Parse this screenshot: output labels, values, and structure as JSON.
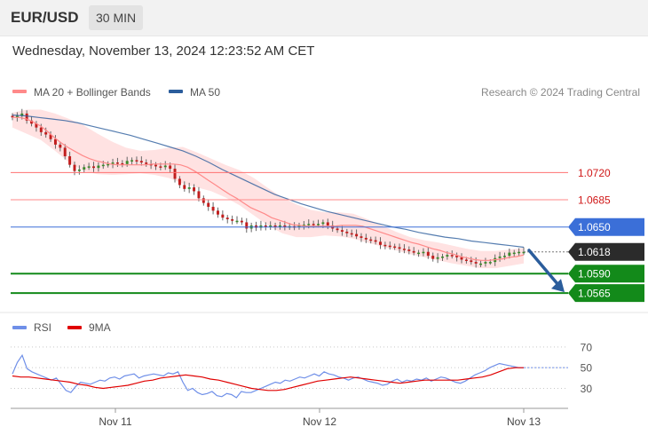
{
  "header": {
    "pair": "EUR/USD",
    "timeframe": "30 MIN",
    "datetime": "Wednesday, November 13, 2024 12:23:52 AM CET"
  },
  "legend": {
    "ma20_label": "MA 20 + Bollinger Bands",
    "ma50_label": "MA 50",
    "credit": "Research © 2024 Trading Central",
    "ma20_color": "#ff8a8a",
    "ma50_color": "#2b5d9c"
  },
  "rsi_legend": {
    "rsi_label": "RSI",
    "ma9_label": "9MA",
    "rsi_color": "#6f8fe8",
    "ma9_color": "#e00000"
  },
  "chart_data": {
    "type": "candlestick",
    "symbol": "EUR/USD",
    "interval": "30 MIN",
    "ylim": [
      1.0548,
      1.0805
    ],
    "x_ticks": [
      "Nov 11",
      "Nov 12",
      "Nov 13"
    ],
    "closes": [
      1.0791,
      1.0793,
      1.0796,
      1.0787,
      1.0783,
      1.0778,
      1.0772,
      1.0769,
      1.0763,
      1.0756,
      1.0752,
      1.0741,
      1.073,
      1.0722,
      1.0724,
      1.0727,
      1.0728,
      1.0726,
      1.0729,
      1.073,
      1.0731,
      1.0733,
      1.0732,
      1.0731,
      1.0735,
      1.0736,
      1.0735,
      1.0733,
      1.0731,
      1.073,
      1.0728,
      1.0727,
      1.0729,
      1.0725,
      1.0712,
      1.0704,
      1.0699,
      1.0701,
      1.0696,
      1.0687,
      1.0681,
      1.0676,
      1.0671,
      1.0666,
      1.0662,
      1.066,
      1.0658,
      1.0658,
      1.0656,
      1.0648,
      1.0652,
      1.0649,
      1.0652,
      1.0651,
      1.0652,
      1.065,
      1.0652,
      1.0651,
      1.0651,
      1.065,
      1.0652,
      1.0653,
      1.0654,
      1.0653,
      1.0654,
      1.0656,
      1.0652,
      1.0648,
      1.0646,
      1.0644,
      1.0642,
      1.0641,
      1.0638,
      1.0636,
      1.0634,
      1.0633,
      1.0631,
      1.0627,
      1.0626,
      1.0625,
      1.0624,
      1.0622,
      1.0621,
      1.0619,
      1.0617,
      1.0617,
      1.0618,
      1.0613,
      1.0609,
      1.0611,
      1.0612,
      1.0614,
      1.0613,
      1.0611,
      1.0608,
      1.0607,
      1.0605,
      1.0603,
      1.0603,
      1.0605,
      1.0605,
      1.061,
      1.0612,
      1.0613,
      1.0617,
      1.0617,
      1.0618,
      1.0618
    ],
    "ma20": [
      1.0791,
      1.0791,
      1.0789,
      1.0785,
      1.078,
      1.0773,
      1.0765,
      1.0758,
      1.0752,
      1.0747,
      1.0742,
      1.0738,
      1.0735,
      1.0733,
      1.0731,
      1.073,
      1.073,
      1.073,
      1.073,
      1.073,
      1.0731,
      1.0731,
      1.0731,
      1.0731,
      1.073,
      1.0727,
      1.0722,
      1.0716,
      1.071,
      1.0704,
      1.0698,
      1.0692,
      1.0687,
      1.0681,
      1.0675,
      1.0671,
      1.0667,
      1.0662,
      1.0659,
      1.0656,
      1.0653,
      1.0652,
      1.0651,
      1.0651,
      1.0651,
      1.0651,
      1.0651,
      1.0652,
      1.0652,
      1.0652,
      1.0651,
      1.0648,
      1.0645,
      1.0642,
      1.0639,
      1.0636,
      1.0633,
      1.063,
      1.0628,
      1.0625,
      1.0622,
      1.062,
      1.0617,
      1.0615,
      1.0612,
      1.061,
      1.0608,
      1.0607,
      1.0607,
      1.0608,
      1.0609,
      1.0611,
      1.0612,
      1.0614
    ],
    "ma50": [
      1.0794,
      1.0793,
      1.0791,
      1.0789,
      1.0787,
      1.0784,
      1.078,
      1.0776,
      1.0772,
      1.0768,
      1.0763,
      1.0758,
      1.0753,
      1.0748,
      1.0741,
      1.0733,
      1.0724,
      1.0716,
      1.0708,
      1.07,
      1.0692,
      1.0686,
      1.068,
      1.0675,
      1.067,
      1.0666,
      1.0662,
      1.0658,
      1.0654,
      1.065,
      1.0647,
      1.0643,
      1.064,
      1.0637,
      1.0635,
      1.0632,
      1.063,
      1.0628,
      1.0626,
      1.0624
    ],
    "bb_upper": [
      1.0797,
      1.0801,
      1.0801,
      1.0796,
      1.0789,
      1.0781,
      1.077,
      1.076,
      1.0752,
      1.0748,
      1.0749,
      1.0752,
      1.0753,
      1.0746,
      1.0738,
      1.073,
      1.0723,
      1.0713,
      1.07,
      1.0688,
      1.0679,
      1.0672,
      1.0669,
      1.0669,
      1.0667,
      1.066,
      1.0652,
      1.0644,
      1.0637,
      1.0633,
      1.063,
      1.0626,
      1.0622,
      1.0619,
      1.0619,
      1.0621,
      1.0623
    ],
    "bb_lower": [
      1.0778,
      1.077,
      1.0762,
      1.0748,
      1.0733,
      1.0722,
      1.0718,
      1.0717,
      1.0718,
      1.0719,
      1.0717,
      1.0713,
      1.0706,
      1.0701,
      1.0696,
      1.0688,
      1.0678,
      1.0665,
      1.0652,
      1.0642,
      1.0637,
      1.0637,
      1.0639,
      1.0638,
      1.0635,
      1.063,
      1.0625,
      1.062,
      1.0615,
      1.0611,
      1.0607,
      1.0603,
      1.06,
      1.0597,
      1.0597,
      1.06,
      1.0603
    ],
    "rsi": [
      44,
      55,
      62,
      49,
      46,
      44,
      42,
      40,
      38,
      40,
      34,
      28,
      26,
      32,
      36,
      35,
      34,
      36,
      38,
      37,
      40,
      41,
      39,
      42,
      43,
      44,
      40,
      42,
      43,
      44,
      43,
      42,
      45,
      44,
      46,
      36,
      28,
      30,
      26,
      24,
      25,
      27,
      23,
      22,
      25,
      24,
      21,
      27,
      26,
      26,
      28,
      30,
      32,
      34,
      36,
      35,
      38,
      37,
      39,
      41,
      40,
      42,
      44,
      42,
      46,
      44,
      43,
      41,
      40,
      38,
      40,
      41,
      39,
      37,
      36,
      35,
      33,
      34,
      37,
      39,
      36,
      38,
      37,
      39,
      38,
      40,
      37,
      39,
      41,
      40,
      38,
      36,
      35,
      37,
      40,
      43,
      45,
      47,
      50,
      52,
      54,
      53,
      52,
      51,
      50,
      50
    ],
    "rsi_ma9": [
      42,
      41,
      41,
      40,
      39,
      38,
      37,
      36,
      34,
      33,
      31,
      30,
      31,
      32,
      33,
      35,
      37,
      38,
      40,
      41,
      42,
      43,
      42,
      41,
      39,
      38,
      36,
      34,
      32,
      30,
      29,
      28,
      28,
      29,
      31,
      33,
      35,
      37,
      38,
      39,
      40,
      41,
      40,
      39,
      38,
      37,
      36,
      35,
      36,
      37,
      38,
      38,
      38,
      38,
      38,
      39,
      40,
      41,
      43,
      46,
      49,
      50,
      50
    ],
    "rsi_levels": [
      70,
      50,
      30
    ],
    "levels": [
      {
        "label": "1.0720",
        "value": 1.072,
        "color": "#ff7070",
        "style": "thin-red"
      },
      {
        "label": "1.0685",
        "value": 1.0685,
        "color": "#ff8a8a",
        "style": "thin-red"
      },
      {
        "label": "1.0650",
        "value": 1.065,
        "color": "#3b6fd8",
        "style": "blue"
      },
      {
        "label": "1.0618",
        "value": 1.0618,
        "color": "#2b2b2b",
        "style": "current"
      },
      {
        "label": "1.0590",
        "value": 1.059,
        "color": "#138a1a",
        "style": "green"
      },
      {
        "label": "1.0565",
        "value": 1.0565,
        "color": "#138a1a",
        "style": "green"
      }
    ],
    "forecast_arrow": {
      "from": 1.062,
      "to": 1.0565,
      "color": "#2b5d9c"
    },
    "rsi_ylim": [
      15,
      75
    ]
  }
}
